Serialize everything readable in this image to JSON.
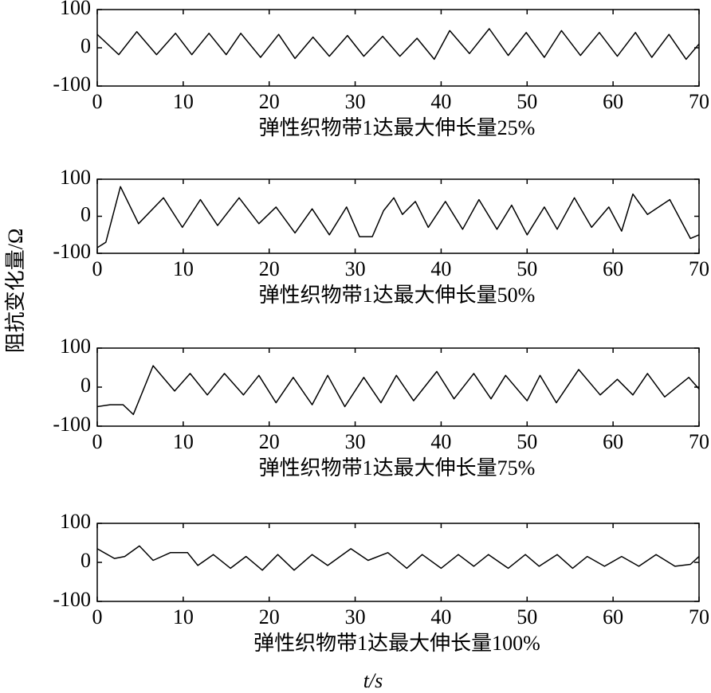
{
  "ylabel": "阻抗变化量/Ω",
  "xlabel": "t/s",
  "chart_data": [
    {
      "type": "line",
      "title": "弹性织物带1达最大伸长量25%",
      "xlim": [
        0,
        70
      ],
      "ylim": [
        -100,
        100
      ],
      "xticks": [
        0,
        10,
        20,
        30,
        40,
        50,
        60,
        70
      ],
      "yticks": [
        -100,
        0,
        100
      ],
      "x": [
        0,
        2.5,
        4.6,
        6.9,
        9.1,
        11,
        13,
        15,
        16.7,
        19,
        21.1,
        23,
        25.1,
        27,
        29.1,
        31,
        33.2,
        35.2,
        37.2,
        39.2,
        41,
        43.3,
        45.6,
        47.8,
        49.9,
        52,
        54,
        56.2,
        58.4,
        60.5,
        62.6,
        64.5,
        66.5,
        68.5,
        70
      ],
      "series": [
        {
          "color": "#000000",
          "values": [
            35,
            -18,
            42,
            -18,
            38,
            -18,
            38,
            -18,
            38,
            -25,
            35,
            -28,
            28,
            -22,
            32,
            -22,
            30,
            -22,
            25,
            -30,
            45,
            -15,
            50,
            -20,
            40,
            -25,
            45,
            -20,
            40,
            -22,
            40,
            -25,
            35,
            -30,
            10
          ]
        }
      ]
    },
    {
      "type": "line",
      "title": "弹性织物带1达最大伸长量50%",
      "xlim": [
        0,
        70
      ],
      "ylim": [
        -100,
        100
      ],
      "xticks": [
        0,
        10,
        20,
        30,
        40,
        50,
        60,
        70
      ],
      "yticks": [
        -100,
        0,
        100
      ],
      "x": [
        0,
        1,
        2.7,
        4.8,
        7.7,
        9.9,
        12,
        14,
        16.5,
        18.8,
        20.8,
        23,
        25,
        27,
        29,
        30.5,
        32,
        33.3,
        34.5,
        35.5,
        37,
        38.5,
        40.5,
        42.5,
        44.4,
        46.5,
        48.2,
        50,
        52,
        53.5,
        55.5,
        57.5,
        59.5,
        61,
        62.3,
        64,
        66.6,
        69,
        70
      ],
      "series": [
        {
          "color": "#000000",
          "values": [
            -85,
            -70,
            80,
            -20,
            50,
            -30,
            45,
            -25,
            50,
            -20,
            25,
            -45,
            20,
            -50,
            25,
            -55,
            -55,
            15,
            50,
            5,
            40,
            -30,
            40,
            -35,
            45,
            -35,
            30,
            -50,
            25,
            -35,
            50,
            -30,
            25,
            -40,
            60,
            5,
            45,
            -60,
            -50
          ]
        }
      ]
    },
    {
      "type": "line",
      "title": "弹性织物带1达最大伸长量75%",
      "xlim": [
        0,
        70
      ],
      "ylim": [
        -100,
        100
      ],
      "xticks": [
        0,
        10,
        20,
        30,
        40,
        50,
        60,
        70
      ],
      "yticks": [
        -100,
        0,
        100
      ],
      "x": [
        0,
        1.5,
        3,
        4.2,
        6.5,
        9,
        10.8,
        12.8,
        14.8,
        17,
        18.8,
        20.8,
        22.8,
        25,
        26.8,
        28.8,
        31,
        33,
        34.8,
        36.8,
        39.5,
        41.5,
        43.8,
        45.8,
        47.5,
        50,
        51.5,
        53.4,
        56,
        58.5,
        60.5,
        62.3,
        64,
        66,
        68.8,
        70
      ],
      "series": [
        {
          "color": "#000000",
          "values": [
            -50,
            -45,
            -45,
            -70,
            55,
            -10,
            35,
            -20,
            35,
            -20,
            30,
            -40,
            25,
            -45,
            30,
            -50,
            25,
            -40,
            30,
            -35,
            40,
            -30,
            35,
            -30,
            30,
            -35,
            30,
            -40,
            45,
            -20,
            20,
            -20,
            35,
            -25,
            25,
            -5
          ]
        }
      ]
    },
    {
      "type": "line",
      "title": "弹性织物带1达最大伸长量100%",
      "xlim": [
        0,
        70
      ],
      "ylim": [
        -100,
        100
      ],
      "xticks": [
        0,
        10,
        20,
        30,
        40,
        50,
        60,
        70
      ],
      "yticks": [
        -100,
        0,
        100
      ],
      "x": [
        0,
        2,
        3.2,
        4.9,
        6.5,
        8.5,
        10.5,
        11.7,
        13.5,
        15.5,
        17.3,
        19.2,
        21,
        22.9,
        25,
        26.8,
        29.5,
        31.5,
        33.8,
        36,
        37.8,
        40,
        42,
        43.8,
        45.5,
        47.8,
        49.8,
        51.4,
        53.5,
        55.3,
        57,
        59,
        61,
        63,
        65,
        67.2,
        69,
        70
      ],
      "series": [
        {
          "color": "#000000",
          "values": [
            35,
            10,
            15,
            42,
            5,
            25,
            25,
            -8,
            20,
            -15,
            15,
            -20,
            20,
            -20,
            20,
            -8,
            35,
            5,
            25,
            -15,
            20,
            -15,
            20,
            -10,
            20,
            -15,
            20,
            -10,
            20,
            -15,
            15,
            -10,
            15,
            -10,
            20,
            -10,
            -5,
            15
          ]
        }
      ]
    }
  ]
}
